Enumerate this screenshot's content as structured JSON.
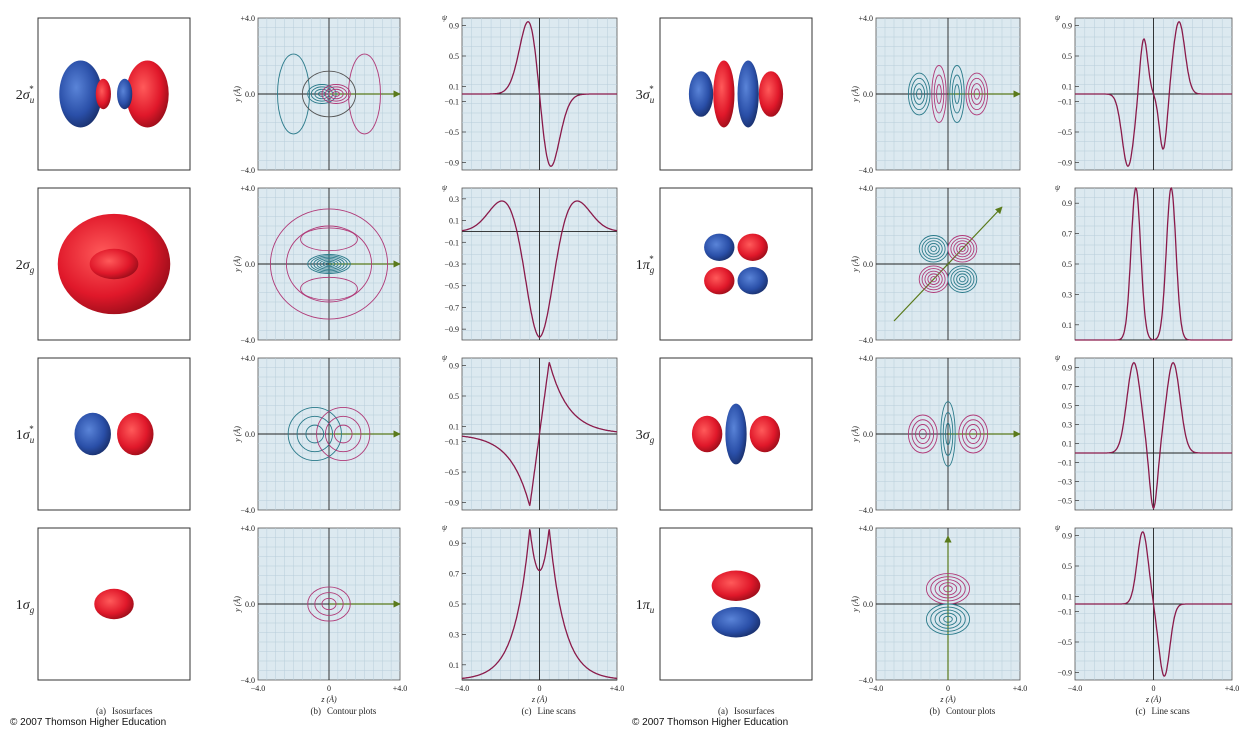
{
  "halves": [
    {
      "rows": [
        {
          "orbital": {
            "n": "2",
            "sym": "σ",
            "sub": "u",
            "sup": "*"
          },
          "scan_yticks": [
            "0.9",
            "0.5",
            "0.1",
            "−0.1",
            "−0.5",
            "−0.9"
          ]
        },
        {
          "orbital": {
            "n": "2",
            "sym": "σ",
            "sub": "g"
          },
          "scan_yticks": [
            "0.3",
            "0.1",
            "−0.1",
            "−0.3",
            "−0.5",
            "−0.7",
            "−0.9"
          ]
        },
        {
          "orbital": {
            "n": "1",
            "sym": "σ",
            "sub": "u",
            "sup": "*"
          },
          "scan_yticks": [
            "0.9",
            "0.5",
            "0.1",
            "−0.1",
            "−0.5",
            "−0.9"
          ]
        },
        {
          "orbital": {
            "n": "1",
            "sym": "σ",
            "sub": "g"
          },
          "scan_yticks": [
            "0.9",
            "0.7",
            "0.5",
            "0.3",
            "0.1"
          ]
        }
      ],
      "captions": {
        "isosurfaces": {
          "label": "(a)",
          "text": "Isosurfaces"
        },
        "contour": {
          "label": "(b)",
          "text": "Contour plots"
        },
        "scans": {
          "label": "(c)",
          "text": "Line scans"
        }
      },
      "copyright": "© 2007 Thomson Higher Education"
    },
    {
      "rows": [
        {
          "orbital": {
            "n": "3",
            "sym": "σ",
            "sub": "u",
            "sup": "*"
          },
          "scan_yticks": [
            "0.9",
            "0.5",
            "0.1",
            "−0.1",
            "−0.5",
            "−0.9"
          ]
        },
        {
          "orbital": {
            "n": "1",
            "sym": "π",
            "sub": "g",
            "sup": "*"
          },
          "scan_yticks": [
            "0.9",
            "0.7",
            "0.5",
            "0.3",
            "0.1"
          ]
        },
        {
          "orbital": {
            "n": "3",
            "sym": "σ",
            "sub": "g"
          },
          "scan_yticks": [
            "0.9",
            "0.7",
            "0.5",
            "0.3",
            "0.1",
            "−0.1",
            "−0.3",
            "−0.5"
          ]
        },
        {
          "orbital": {
            "n": "1",
            "sym": "π",
            "sub": "u"
          },
          "scan_yticks": [
            "0.9",
            "0.5",
            "0.1",
            "−0.1",
            "−0.5",
            "−0.9"
          ]
        }
      ],
      "captions": {
        "isosurfaces": {
          "label": "(a)",
          "text": "Isosurfaces"
        },
        "contour": {
          "label": "(b)",
          "text": "Contour plots"
        },
        "scans": {
          "label": "(c)",
          "text": "Line scans"
        }
      },
      "copyright": "© 2007 Thomson Higher Education"
    }
  ],
  "contour_axes": {
    "y_label": "y (Å)",
    "yticks": [
      "+4.0",
      "0.0",
      "−4.0"
    ],
    "x_label": "z (Å)",
    "xticks": [
      "−4.0",
      "0",
      "+4.0"
    ]
  },
  "scan_axes": {
    "y_label": "ψ",
    "x_label": "z (Å)",
    "xticks": [
      "−4.0",
      "0",
      "+4.0"
    ]
  }
}
